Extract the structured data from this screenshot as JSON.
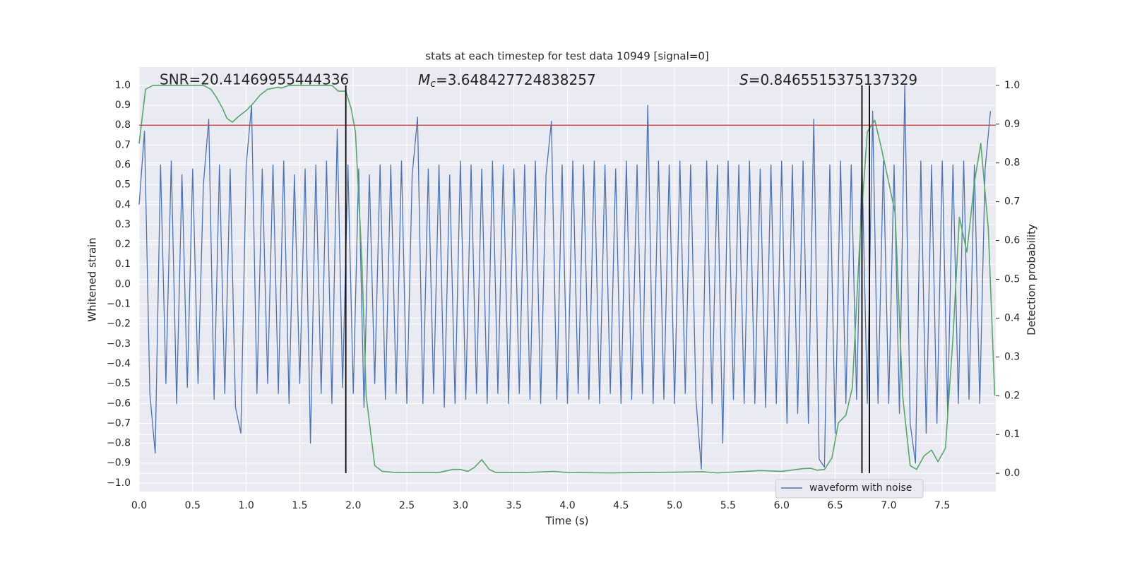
{
  "chart_data": {
    "type": "line",
    "title": "stats at each timestep for test data 10949 [signal=0]",
    "xlabel": "Time (s)",
    "ylabel": "Whitened strain",
    "y2label": "Detection probability",
    "snr_label": "SNR=20.41469955444336",
    "mc_label": {
      "symbol": "M",
      "subscript": "c",
      "text": "=3.648427724838257"
    },
    "s_label": {
      "symbol": "S",
      "text": "=0.8465515375137329"
    },
    "xlim": [
      0,
      8
    ],
    "ylim": [
      -1.043,
      1.092
    ],
    "y2lim": [
      -0.047,
      1.047
    ],
    "xticks": [
      {
        "value": 0,
        "label": "0.0"
      },
      0.5,
      {
        "value": 1,
        "label": "1.0"
      },
      1.5,
      {
        "value": 2,
        "label": "2.0"
      },
      2.5,
      {
        "value": 3,
        "label": "3.0"
      },
      3.5,
      {
        "value": 4,
        "label": "4.0"
      },
      4.5,
      {
        "value": 5,
        "label": "5.0"
      },
      5.5,
      {
        "value": 6,
        "label": "6.0"
      },
      6.5,
      {
        "value": 7,
        "label": "7.0"
      },
      7.5
    ],
    "yticks": [
      {
        "value": -1,
        "label": "−1.0"
      },
      {
        "value": -0.9,
        "label": "−0.9"
      },
      {
        "value": -0.8,
        "label": "−0.8"
      },
      {
        "value": -0.7,
        "label": "−0.7"
      },
      {
        "value": -0.6,
        "label": "−0.6"
      },
      {
        "value": -0.5,
        "label": "−0.5"
      },
      {
        "value": -0.4,
        "label": "−0.4"
      },
      {
        "value": -0.3,
        "label": "−0.3"
      },
      {
        "value": -0.2,
        "label": "−0.2"
      },
      {
        "value": -0.1,
        "label": "−0.1"
      },
      {
        "value": 0,
        "label": "0.0"
      },
      0.1,
      0.2,
      0.3,
      0.4,
      0.5,
      0.6,
      0.7,
      0.8,
      0.9,
      {
        "value": 1,
        "label": "1.0"
      }
    ],
    "y2ticks": [
      {
        "value": 0,
        "label": "0.0"
      },
      0.1,
      0.2,
      0.3,
      0.4,
      0.5,
      0.6,
      0.7,
      0.8,
      0.9,
      {
        "value": 1,
        "label": "1.0"
      }
    ],
    "grid": true,
    "legend": "lower right",
    "series": [
      {
        "name": "waveform with noise",
        "color": "#4c72b0",
        "x": [
          0,
          0.05,
          0.1,
          0.15,
          0.2,
          0.25,
          0.3,
          0.35,
          0.4,
          0.45,
          0.5,
          0.55,
          0.6,
          0.65,
          0.7,
          0.75,
          0.8,
          0.85,
          0.9,
          0.95,
          1,
          1.05,
          1.1,
          1.15,
          1.2,
          1.25,
          1.3,
          1.35,
          1.4,
          1.45,
          1.5,
          1.55,
          1.6,
          1.65,
          1.7,
          1.75,
          1.8,
          1.85,
          1.9,
          1.95,
          2,
          2.05,
          2.1,
          2.15,
          2.2,
          2.25,
          2.3,
          2.35,
          2.4,
          2.45,
          2.5,
          2.55,
          2.6,
          2.65,
          2.7,
          2.75,
          2.8,
          2.85,
          2.9,
          2.95,
          3,
          3.05,
          3.1,
          3.15,
          3.2,
          3.25,
          3.3,
          3.35,
          3.4,
          3.45,
          3.5,
          3.55,
          3.6,
          3.65,
          3.7,
          3.75,
          3.8,
          3.85,
          3.9,
          3.95,
          4,
          4.05,
          4.1,
          4.15,
          4.2,
          4.25,
          4.3,
          4.35,
          4.4,
          4.45,
          4.5,
          4.55,
          4.6,
          4.65,
          4.7,
          4.75,
          4.8,
          4.85,
          4.9,
          4.95,
          5,
          5.05,
          5.1,
          5.15,
          5.2,
          5.25,
          5.3,
          5.35,
          5.4,
          5.45,
          5.5,
          5.55,
          5.6,
          5.65,
          5.7,
          5.75,
          5.8,
          5.85,
          5.9,
          5.95,
          6,
          6.05,
          6.1,
          6.15,
          6.2,
          6.25,
          6.3,
          6.35,
          6.4,
          6.45,
          6.5,
          6.55,
          6.6,
          6.65,
          6.7,
          6.75,
          6.8,
          6.85,
          6.9,
          6.95,
          7,
          7.05,
          7.1,
          7.15,
          7.2,
          7.25,
          7.3,
          7.35,
          7.4,
          7.45,
          7.5,
          7.55,
          7.6,
          7.65,
          7.7,
          7.75,
          7.8,
          7.85,
          7.9,
          7.95
        ],
        "values": [
          0.4,
          0.77,
          -0.55,
          -0.85,
          0.6,
          -0.5,
          0.62,
          -0.6,
          0.55,
          -0.52,
          0.58,
          -0.5,
          0.5,
          0.83,
          -0.58,
          0.6,
          -0.55,
          0.58,
          -0.62,
          -0.75,
          0.6,
          0.9,
          -0.55,
          0.58,
          -0.5,
          0.6,
          -0.55,
          0.62,
          -0.6,
          0.55,
          -0.5,
          0.58,
          -0.8,
          0.6,
          -0.55,
          0.62,
          -0.6,
          0.78,
          -0.52,
          0.6,
          -0.55,
          0.58,
          -0.62,
          0.55,
          -0.5,
          0.6,
          -0.58,
          0.6,
          -0.55,
          0.62,
          -0.6,
          0.55,
          0.84,
          -0.6,
          0.58,
          -0.55,
          0.6,
          -0.62,
          0.55,
          -0.6,
          0.62,
          -0.58,
          0.6,
          -0.55,
          0.58,
          -0.6,
          0.62,
          -0.55,
          0.6,
          -0.6,
          0.58,
          -0.55,
          0.6,
          -0.58,
          0.62,
          -0.6,
          0.55,
          0.82,
          -0.58,
          0.6,
          -0.6,
          0.62,
          -0.55,
          0.6,
          -0.58,
          0.62,
          -0.6,
          0.6,
          -0.55,
          0.58,
          -0.6,
          0.62,
          -0.58,
          0.6,
          -0.55,
          0.9,
          -0.6,
          0.62,
          -0.58,
          0.6,
          -0.6,
          0.62,
          -0.55,
          0.6,
          -0.58,
          -0.93,
          0.62,
          -0.6,
          0.6,
          -0.8,
          0.62,
          -0.58,
          0.6,
          -0.6,
          0.62,
          -0.6,
          0.58,
          -0.62,
          0.6,
          -0.6,
          0.62,
          -0.7,
          0.6,
          -0.65,
          0.62,
          -0.7,
          0.83,
          -0.88,
          -0.92,
          0.6,
          -0.75,
          0.62,
          -0.6,
          0.6,
          -0.58,
          0.62,
          -0.6,
          0.87,
          -0.6,
          0.62,
          -0.6,
          0.6,
          -0.65,
          1.0,
          -0.7,
          -0.9,
          0.62,
          -0.75,
          0.6,
          -0.7,
          0.62,
          -0.65,
          0.6,
          -0.6,
          0.62,
          -0.58,
          0.6,
          -0.6,
          0.58,
          0.87
        ]
      },
      {
        "color": "#55a868",
        "axis": "y2",
        "x": [
          0,
          0.06,
          0.13,
          0.6,
          0.67,
          0.72,
          0.78,
          0.82,
          0.87,
          0.93,
          1,
          1.07,
          1.13,
          1.2,
          1.3,
          1.33,
          1.4,
          1.8,
          1.86,
          1.93,
          1.98,
          2.02,
          2.08,
          2.12,
          2.2,
          2.27,
          2.4,
          2.8,
          2.93,
          3,
          3.07,
          3.13,
          3.2,
          3.27,
          3.33,
          3.6,
          3.87,
          4,
          4.4,
          5,
          5.26,
          5.4,
          5.8,
          6,
          6.2,
          6.27,
          6.33,
          6.4,
          6.47,
          6.53,
          6.6,
          6.66,
          6.73,
          6.8,
          6.87,
          6.93,
          7,
          7.06,
          7.13,
          7.2,
          7.26,
          7.33,
          7.4,
          7.46,
          7.53,
          7.6,
          7.66,
          7.73,
          7.8,
          7.86,
          7.93,
          7.99
        ],
        "values": [
          0.85,
          0.99,
          1.0,
          1.0,
          0.99,
          0.97,
          0.94,
          0.915,
          0.905,
          0.92,
          0.935,
          0.955,
          0.975,
          0.99,
          0.995,
          0.993,
          1.0,
          1.0,
          0.985,
          0.985,
          0.94,
          0.88,
          0.55,
          0.2,
          0.02,
          0.005,
          0.002,
          0.002,
          0.01,
          0.01,
          0.005,
          0.015,
          0.035,
          0.01,
          0.002,
          0.002,
          0.005,
          0.002,
          0.001,
          0.003,
          0.004,
          0.001,
          0.007,
          0.005,
          0.012,
          0.013,
          0.008,
          0.01,
          0.04,
          0.13,
          0.15,
          0.22,
          0.6,
          0.88,
          0.91,
          0.84,
          0.75,
          0.67,
          0.2,
          0.02,
          0.01,
          0.045,
          0.06,
          0.03,
          0.065,
          0.35,
          0.66,
          0.57,
          0.75,
          0.85,
          0.63,
          0.2
        ]
      }
    ],
    "hline": {
      "y": 0.8,
      "color": "#c44e52"
    },
    "vlines": {
      "x": [
        1.93,
        6.75,
        6.82
      ],
      "ymin": -0.95,
      "ymax": 1.0,
      "color": "#000000"
    }
  }
}
